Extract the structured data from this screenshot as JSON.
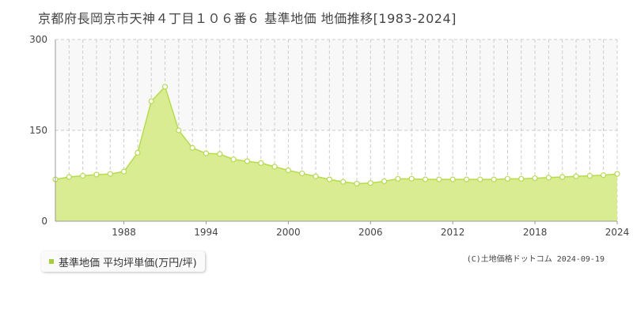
{
  "title": "京都府長岡京市天神４丁目１０６番６  基準地価  地価推移[1983-2024]",
  "legend": {
    "label": "基準地価 平均坪単価(万円/坪)"
  },
  "credit": "(C)土地価格ドットコム 2024-09-19",
  "colors": {
    "fill": "#d9ec92",
    "line": "#b5dc4a",
    "marker_stroke": "#b5dc4a",
    "marker_fill": "#ffffff",
    "legend_swatch": "#a5cf3a"
  },
  "chart_data": {
    "type": "area",
    "x": [
      1983,
      1984,
      1985,
      1986,
      1987,
      1988,
      1989,
      1990,
      1991,
      1992,
      1993,
      1994,
      1995,
      1996,
      1997,
      1998,
      1999,
      2000,
      2001,
      2002,
      2003,
      2004,
      2005,
      2006,
      2007,
      2008,
      2009,
      2010,
      2011,
      2012,
      2013,
      2014,
      2015,
      2016,
      2017,
      2018,
      2019,
      2020,
      2021,
      2022,
      2023,
      2024
    ],
    "series": [
      {
        "values": [
          69,
          73,
          75,
          77,
          78,
          82,
          113,
          198,
          222,
          150,
          121,
          112,
          111,
          102,
          99,
          96,
          90,
          84,
          79,
          74,
          69,
          65,
          62,
          63,
          66,
          70,
          70,
          69,
          69,
          69,
          69,
          69,
          69,
          70,
          70,
          71,
          72,
          73,
          74,
          75,
          76,
          78
        ]
      }
    ],
    "xlim": [
      1983,
      2024
    ],
    "ylim": [
      0,
      300
    ],
    "yticks": [
      0,
      150,
      300
    ],
    "xticks": [
      1988,
      1994,
      2000,
      2006,
      2012,
      2018,
      2024
    ],
    "grid": true
  }
}
